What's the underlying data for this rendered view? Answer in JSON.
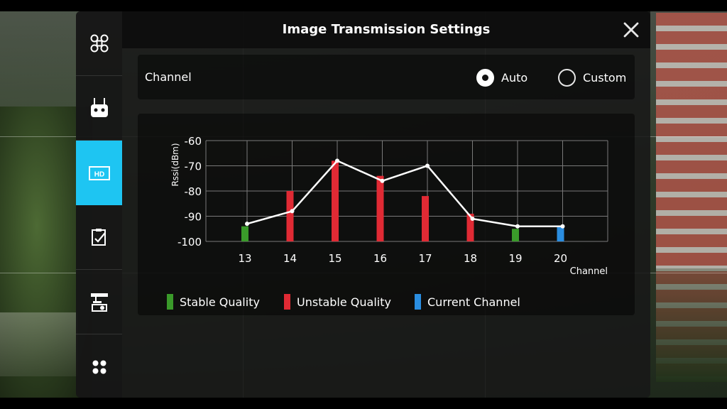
{
  "window": {
    "title": "Image Transmission Settings"
  },
  "side_menu": {
    "items": [
      {
        "icon": "aircraft-icon",
        "active": false
      },
      {
        "icon": "remote-controller-icon",
        "active": false
      },
      {
        "icon": "hd-icon",
        "label": "HD",
        "active": true
      },
      {
        "icon": "checklist-icon",
        "active": false
      },
      {
        "icon": "gimbal-camera-icon",
        "active": false
      },
      {
        "icon": "more-icon",
        "active": false
      }
    ]
  },
  "channel": {
    "label": "Channel",
    "options": [
      {
        "label": "Auto",
        "selected": true
      },
      {
        "label": "Custom",
        "selected": false
      }
    ]
  },
  "legend": {
    "stable": "Stable Quality",
    "unstable": "Unstable Quality",
    "current": "Current Channel"
  },
  "colors": {
    "stable": "#3a9a2a",
    "unstable": "#e02a34",
    "current": "#2a8de0",
    "accent": "#1ec5f2"
  },
  "chart_data": {
    "type": "bar",
    "ylabel": "Rssi(dBm)",
    "xlabel": "Channel",
    "ylim": [
      -100,
      -60
    ],
    "yticks": [
      -60,
      -70,
      -80,
      -90,
      -100
    ],
    "categories": [
      "13",
      "14",
      "15",
      "16",
      "17",
      "18",
      "19",
      "20"
    ],
    "bar_values": [
      -94,
      -80,
      -68,
      -74,
      -82,
      -89,
      -95,
      -94
    ],
    "bar_quality": [
      "stable",
      "unstable",
      "unstable",
      "unstable",
      "unstable",
      "unstable",
      "stable",
      "current"
    ],
    "line_values": [
      -93,
      -88,
      -68,
      -76,
      -70,
      -91,
      -94,
      -94
    ],
    "grid": true
  }
}
